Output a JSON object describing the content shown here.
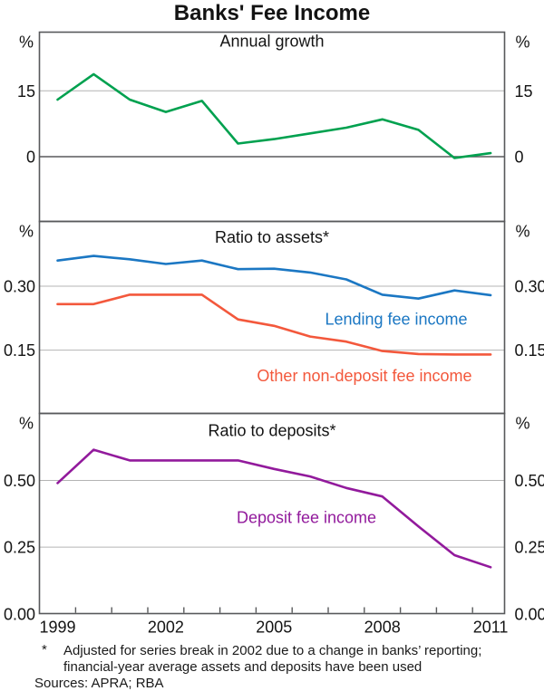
{
  "title": "Banks' Fee Income",
  "footnote": {
    "marker": "*",
    "lines": [
      "Adjusted for series break in 2002 due to a change in banks’ reporting;",
      "financial-year average assets and deposits have been used"
    ],
    "sources": "Sources: APRA; RBA"
  },
  "colors": {
    "growth_green": "#00a14f",
    "lending_blue": "#1b77c3",
    "other_red": "#f3583c",
    "deposit_purple": "#921a9c",
    "gridline": "#b4b4b4",
    "axis": "#58595b",
    "text": "#141414"
  },
  "chart_data": {
    "type": "line",
    "title": "Banks' Fee Income",
    "x": [
      1999,
      2000,
      2001,
      2002,
      2003,
      2004,
      2005,
      2006,
      2007,
      2008,
      2009,
      2010,
      2011
    ],
    "x_tick_labels": [
      "1999",
      "2002",
      "2005",
      "2008",
      "2011"
    ],
    "x_tick_years": [
      1999,
      2002,
      2005,
      2008,
      2011
    ],
    "legend_position": "inline-annotations",
    "grid": "horizontal-only",
    "panels": [
      {
        "title": "Annual growth",
        "unit": "%",
        "ylim": [
          -15,
          28.5
        ],
        "gridlines": [
          {
            "value": 15,
            "label": "15",
            "style": "light"
          },
          {
            "value": 0,
            "label": "0",
            "style": "dark"
          }
        ],
        "series": [
          {
            "name": "annual-growth",
            "label": null,
            "color_key": "growth_green",
            "values": [
              13,
              18.8,
              13,
              10.2,
              12.7,
              3.0,
              4.0,
              5.3,
              6.6,
              8.5,
              6.1,
              -0.3,
              0.8
            ]
          }
        ]
      },
      {
        "title": "Ratio to assets*",
        "unit": "%",
        "ylim": [
          0,
          0.45
        ],
        "gridlines": [
          {
            "value": 0.3,
            "label": "0.30",
            "style": "light"
          },
          {
            "value": 0.15,
            "label": "0.15",
            "style": "light"
          }
        ],
        "series": [
          {
            "name": "lending-fee-income",
            "label": "Lending fee income",
            "color_key": "lending_blue",
            "values": [
              0.36,
              0.371,
              0.363,
              0.352,
              0.36,
              0.34,
              0.341,
              0.332,
              0.316,
              0.28,
              0.271,
              0.29,
              0.279
            ]
          },
          {
            "name": "other-non-deposit-fee-income",
            "label": "Other non-deposit fee income",
            "color_key": "other_red",
            "values": [
              0.258,
              0.258,
              0.28,
              0.28,
              0.28,
              0.222,
              0.207,
              0.182,
              0.17,
              0.148,
              0.141,
              0.14,
              0.14
            ]
          }
        ]
      },
      {
        "title": "Ratio to deposits*",
        "unit": "%",
        "ylim": [
          0,
          0.75
        ],
        "gridlines": [
          {
            "value": 0.5,
            "label": "0.50",
            "style": "light"
          },
          {
            "value": 0.25,
            "label": "0.25",
            "style": "light"
          },
          {
            "value": 0,
            "label": "0.00",
            "style": "edge"
          }
        ],
        "series": [
          {
            "name": "deposit-fee-income",
            "label": "Deposit fee income",
            "color_key": "deposit_purple",
            "values": [
              0.49,
              0.615,
              0.575,
              0.575,
              0.575,
              0.575,
              0.543,
              0.515,
              0.472,
              0.44,
              0.328,
              0.22,
              0.175
            ]
          }
        ]
      }
    ]
  }
}
